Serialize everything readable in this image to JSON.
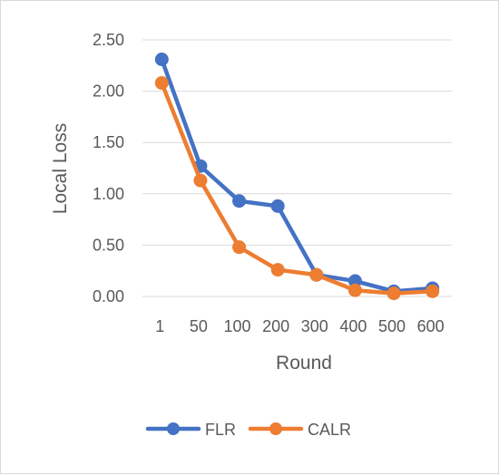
{
  "chart_data": {
    "type": "line",
    "title": "",
    "xlabel": "Round",
    "ylabel": "Local Loss",
    "categories": [
      "1",
      "50",
      "100",
      "200",
      "300",
      "400",
      "500",
      "600"
    ],
    "ylim": [
      0,
      2.5
    ],
    "yticks": [
      "0.00",
      "0.50",
      "1.00",
      "1.50",
      "2.00",
      "2.50"
    ],
    "grid": true,
    "legend_position": "bottom",
    "series": [
      {
        "name": "FLR",
        "color": "#4472c4",
        "values": [
          2.31,
          1.27,
          0.93,
          0.88,
          0.21,
          0.15,
          0.05,
          0.08
        ]
      },
      {
        "name": "CALR",
        "color": "#ed7d31",
        "values": [
          2.08,
          1.13,
          0.48,
          0.26,
          0.21,
          0.06,
          0.03,
          0.05
        ]
      }
    ]
  }
}
